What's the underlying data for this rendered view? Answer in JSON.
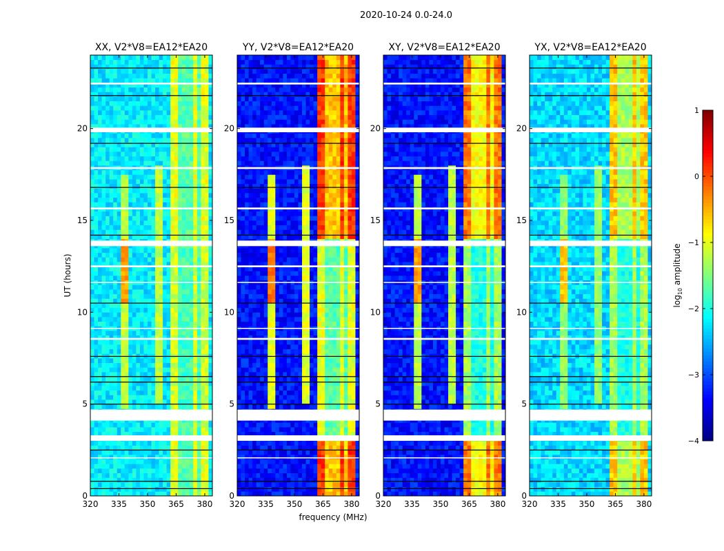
{
  "chart_data": {
    "type": "heatmap",
    "title": "2020-10-24 0.0-24.0",
    "xlabel": "frequency (MHz)",
    "ylabel": "UT (hours)",
    "xlim": [
      320,
      384
    ],
    "ylim": [
      0,
      24
    ],
    "xticks": [
      320,
      335,
      350,
      365,
      380
    ],
    "yticks": [
      0,
      5,
      10,
      15,
      20
    ],
    "colorbar": {
      "label": "log10 amplitude",
      "label_main": "log",
      "label_sub": "10",
      "label_rest": " amplitude",
      "range": [
        -4,
        1
      ],
      "ticks": [
        1,
        0,
        -1,
        -2,
        -3,
        -4
      ],
      "tick_labels": [
        "1",
        "0",
        "−1",
        "−2",
        "−3",
        "−4"
      ],
      "colormap": "jet"
    },
    "rfi_band_mhz": [
      363,
      381
    ],
    "band_gaps_mhz": [
      368,
      372,
      377
    ],
    "spectral_lines_mhz": [
      {
        "freq": 338,
        "hours": [
          4.8,
          17.5
        ]
      },
      {
        "freq": 356,
        "hours": [
          5,
          18
        ]
      }
    ],
    "flagged_hours": [
      [
        3.0,
        3.3
      ],
      [
        4.1,
        4.7
      ],
      [
        13.6,
        13.9
      ],
      [
        19.8,
        20.05
      ],
      [
        12.45,
        12.55
      ],
      [
        8.5,
        8.6
      ],
      [
        17.8,
        17.9
      ],
      [
        22.4,
        22.5
      ],
      [
        15.6,
        15.7
      ],
      [
        11.6,
        11.65
      ],
      [
        9.1,
        9.15
      ],
      [
        2.05,
        2.1
      ]
    ],
    "dark_rows_hours": [
      0.4,
      0.8,
      2.5,
      5.0,
      6.2,
      6.5,
      7.6,
      10.5,
      14.2,
      16.8,
      19.2,
      21.8,
      23.3
    ],
    "panels": [
      {
        "title": "XX, V2*V8=EA12*EA20",
        "background_level": -2.2,
        "band_level_strong": -1.0,
        "band_level_weak": -1.1,
        "line_level": -1.2
      },
      {
        "title": "YY, V2*V8=EA12*EA20",
        "background_level": -3.3,
        "band_level_strong": 0.1,
        "band_level_weak": -1.0,
        "line_level": -1.0
      },
      {
        "title": "XY, V2*V8=EA12*EA20",
        "background_level": -3.3,
        "band_level_strong": -0.2,
        "band_level_weak": -1.3,
        "line_level": -1.2
      },
      {
        "title": "YX, V2*V8=EA12*EA20",
        "background_level": -2.3,
        "band_level_strong": -0.6,
        "band_level_weak": -1.3,
        "line_level": -1.4
      }
    ]
  }
}
